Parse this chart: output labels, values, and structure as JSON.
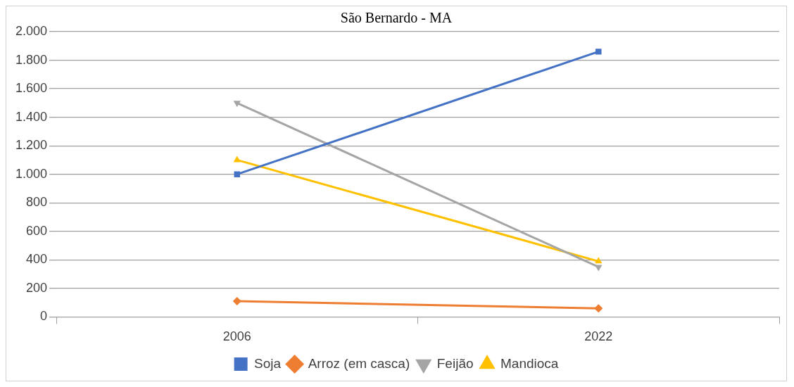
{
  "chart_data": {
    "type": "line",
    "title": "São Bernardo - MA",
    "categories": [
      "2006",
      "2022"
    ],
    "series": [
      {
        "name": "Soja",
        "color": "#4472c4",
        "values": [
          1000,
          1860
        ],
        "marker": "square"
      },
      {
        "name": "Arroz (em casca)",
        "color": "#ed7d31",
        "values": [
          110,
          60
        ],
        "marker": "diamond"
      },
      {
        "name": "Feijão",
        "color": "#a5a5a5",
        "values": [
          1500,
          350
        ],
        "marker": "triangle-down"
      },
      {
        "name": "Mandioca",
        "color": "#ffc000",
        "values": [
          1100,
          390
        ],
        "marker": "triangle"
      }
    ],
    "ylim": [
      0,
      2000
    ],
    "yticks": [
      {
        "value": 0,
        "label": "0"
      },
      {
        "value": 200,
        "label": "200"
      },
      {
        "value": 400,
        "label": "400"
      },
      {
        "value": 600,
        "label": "600"
      },
      {
        "value": 800,
        "label": "800"
      },
      {
        "value": 1000,
        "label": "1.000"
      },
      {
        "value": 1200,
        "label": "1.200"
      },
      {
        "value": 1400,
        "label": "1.400"
      },
      {
        "value": 1600,
        "label": "1.600"
      },
      {
        "value": 1800,
        "label": "1.800"
      },
      {
        "value": 2000,
        "label": "2.000"
      }
    ],
    "grid": "y",
    "legend": "bottom",
    "line_style": "solid"
  }
}
